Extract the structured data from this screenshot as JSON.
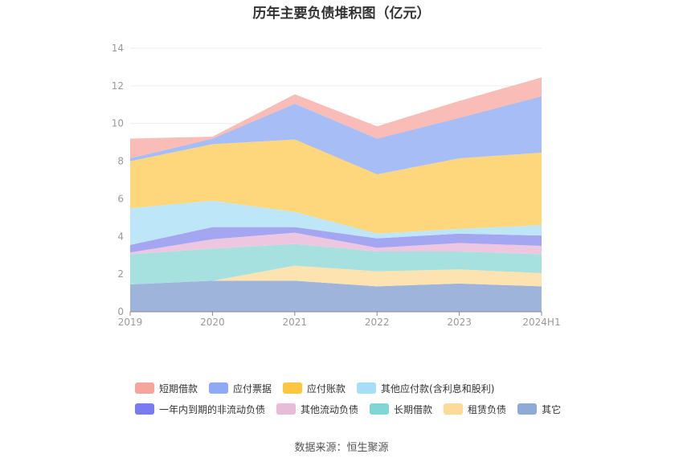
{
  "chart_data": {
    "type": "area",
    "stacked": true,
    "title": "历年主要负债堆积图（亿元）",
    "categories": [
      "2019",
      "2020",
      "2021",
      "2022",
      "2023",
      "2024H1"
    ],
    "ylim": [
      0,
      14
    ],
    "yticks": [
      0,
      2,
      4,
      6,
      8,
      10,
      12,
      14
    ],
    "grid": true,
    "legend_position": "bottom",
    "series": [
      {
        "name": "其它",
        "color": "#9fb4da",
        "values": [
          1.45,
          1.65,
          1.65,
          1.35,
          1.5,
          1.35
        ]
      },
      {
        "name": "租赁负债",
        "color": "#fde3b0",
        "values": [
          0.0,
          0.0,
          0.8,
          0.8,
          0.75,
          0.7
        ]
      },
      {
        "name": "长期借款",
        "color": "#a6e0df",
        "values": [
          1.6,
          1.7,
          1.15,
          1.05,
          0.95,
          1.0
        ]
      },
      {
        "name": "其他流动负债",
        "color": "#edc7e0",
        "values": [
          0.1,
          0.5,
          0.6,
          0.2,
          0.45,
          0.45
        ]
      },
      {
        "name": "一年内到期的非流动负债",
        "color": "#a5a6f2",
        "values": [
          0.4,
          0.65,
          0.3,
          0.5,
          0.5,
          0.55
        ]
      },
      {
        "name": "其他应付款(含利息和股利)",
        "color": "#bde7f9",
        "values": [
          1.95,
          1.4,
          0.8,
          0.25,
          0.25,
          0.55
        ]
      },
      {
        "name": "应付账款",
        "color": "#fed77c",
        "values": [
          2.5,
          3.0,
          3.85,
          3.15,
          3.75,
          3.85
        ]
      },
      {
        "name": "应付票据",
        "color": "#a6bdf6",
        "values": [
          0.15,
          0.3,
          1.9,
          1.9,
          2.15,
          3.0
        ]
      },
      {
        "name": "短期借款",
        "color": "#f9bcb6",
        "values": [
          1.05,
          0.1,
          0.5,
          0.65,
          0.9,
          1.0
        ]
      }
    ]
  },
  "legend": {
    "row1": [
      {
        "name": "短期借款",
        "color": "#f6a59d"
      },
      {
        "name": "应付票据",
        "color": "#8ea9f5"
      },
      {
        "name": "应付账款",
        "color": "#fdc63f"
      },
      {
        "name": "其他应付款(含利息和股利)",
        "color": "#a6def8"
      }
    ],
    "row2": [
      {
        "name": "一年内到期的非流动负债",
        "color": "#7a7bf0"
      },
      {
        "name": "其他流动负债",
        "color": "#e8bcd9"
      },
      {
        "name": "长期借款",
        "color": "#7fd6d5"
      },
      {
        "name": "租赁负债",
        "color": "#fdd99a"
      },
      {
        "name": "其它",
        "color": "#8daad8"
      }
    ]
  },
  "source": "数据来源：恒生聚源"
}
